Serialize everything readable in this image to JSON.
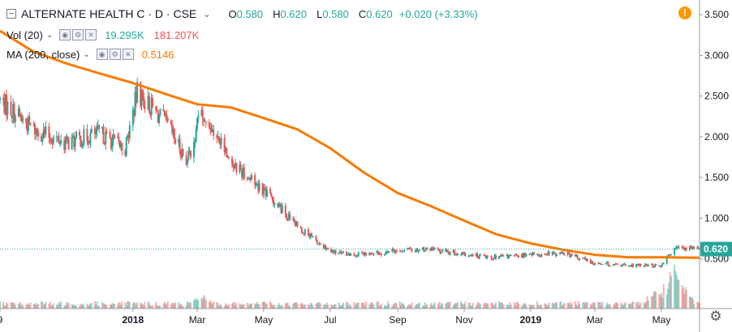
{
  "header": {
    "symbol": "ALTERNATE HEALTH C · D · CSE",
    "ohlc": [
      {
        "k": "O",
        "v": "0.580"
      },
      {
        "k": "H",
        "v": "0.620"
      },
      {
        "k": "L",
        "v": "0.580"
      },
      {
        "k": "C",
        "v": "0.620"
      }
    ],
    "change": "+0.020 (+3.33%)",
    "alert_glyph": "!"
  },
  "volume_study": {
    "label": "Vol (20)",
    "value1": "19.295K",
    "value2": "181.207K"
  },
  "ma_study": {
    "label": "MA (200, close)",
    "value": "0.5146"
  },
  "icons": {
    "collapse": "collapse-icon",
    "alert": "alert-icon",
    "settings": "gear-icon",
    "settings_glyph": "⚙",
    "study_buttons": [
      "eye-icon",
      "gear-icon",
      "close-icon"
    ],
    "study_button_glyphs": [
      "◉",
      "⚙",
      "✕"
    ]
  },
  "colors": {
    "up": "#26a69a",
    "down": "#ef5350",
    "ma": "#f57c00",
    "price_label_bg": "#26a69a",
    "price_line": "#26a69a"
  },
  "chart_data": {
    "type": "candlestick",
    "title": "ALTERNATE HEALTH C · D · CSE",
    "x_ticks": [
      {
        "label": "9",
        "date": "2017-09-01"
      },
      {
        "label": "2018",
        "date": "2018-01-01"
      },
      {
        "label": "Mar",
        "date": "2018-03-01"
      },
      {
        "label": "May",
        "date": "2018-05-01"
      },
      {
        "label": "Jul",
        "date": "2018-07-01"
      },
      {
        "label": "Sep",
        "date": "2018-09-01"
      },
      {
        "label": "Nov",
        "date": "2018-11-01"
      },
      {
        "label": "2019",
        "date": "2019-01-01"
      },
      {
        "label": "Mar",
        "date": "2019-03-01"
      },
      {
        "label": "May",
        "date": "2019-05-01"
      }
    ],
    "x_range": [
      "2017-09-01",
      "2019-06-05"
    ],
    "y_ticks": [
      "0.500",
      "1.000",
      "1.500",
      "2.000",
      "2.500",
      "3.000",
      "3.500"
    ],
    "y_range": [
      0.0,
      3.62
    ],
    "last_price": "0.620",
    "series": [
      {
        "name": "MA (200, close)",
        "kind": "line",
        "points": [
          [
            "2017-09-01",
            3.3
          ],
          [
            "2017-10-01",
            3.05
          ],
          [
            "2017-11-01",
            2.9
          ],
          [
            "2017-12-01",
            2.78
          ],
          [
            "2018-01-01",
            2.66
          ],
          [
            "2018-02-01",
            2.52
          ],
          [
            "2018-03-01",
            2.4
          ],
          [
            "2018-04-01",
            2.36
          ],
          [
            "2018-05-01",
            2.23
          ],
          [
            "2018-06-01",
            2.09
          ],
          [
            "2018-07-01",
            1.86
          ],
          [
            "2018-08-01",
            1.56
          ],
          [
            "2018-09-01",
            1.31
          ],
          [
            "2018-10-01",
            1.15
          ],
          [
            "2018-11-01",
            0.97
          ],
          [
            "2018-12-01",
            0.8
          ],
          [
            "2019-01-01",
            0.69
          ],
          [
            "2019-02-01",
            0.61
          ],
          [
            "2019-03-01",
            0.55
          ],
          [
            "2019-04-01",
            0.52
          ],
          [
            "2019-05-01",
            0.52
          ],
          [
            "2019-06-05",
            0.515
          ]
        ]
      },
      {
        "name": "Price",
        "kind": "candles",
        "anchors": [
          [
            "2017-09-01",
            2.45
          ],
          [
            "2017-10-01",
            2.1
          ],
          [
            "2017-11-01",
            1.92
          ],
          [
            "2017-12-01",
            2.05
          ],
          [
            "2017-12-25",
            1.85
          ],
          [
            "2018-01-05",
            2.55
          ],
          [
            "2018-02-01",
            2.15
          ],
          [
            "2018-02-20",
            1.7
          ],
          [
            "2018-03-05",
            2.3
          ],
          [
            "2018-04-01",
            1.7
          ],
          [
            "2018-05-01",
            1.35
          ],
          [
            "2018-06-01",
            0.9
          ],
          [
            "2018-07-01",
            0.58
          ],
          [
            "2018-08-01",
            0.55
          ],
          [
            "2018-09-01",
            0.6
          ],
          [
            "2018-10-01",
            0.62
          ],
          [
            "2018-11-01",
            0.55
          ],
          [
            "2018-12-01",
            0.52
          ],
          [
            "2019-01-01",
            0.55
          ],
          [
            "2019-02-01",
            0.57
          ],
          [
            "2019-03-01",
            0.45
          ],
          [
            "2019-04-01",
            0.42
          ],
          [
            "2019-05-01",
            0.42
          ],
          [
            "2019-05-15",
            0.65
          ],
          [
            "2019-06-05",
            0.62
          ]
        ]
      }
    ],
    "volume": {
      "name": "Vol (20)",
      "peaks": [
        {
          "date": "2019-05-10",
          "level": 0.9
        },
        {
          "date": "2019-05-20",
          "level": 0.7
        },
        {
          "date": "2019-04-25",
          "level": 0.35
        },
        {
          "date": "2018-03-05",
          "level": 0.3
        }
      ]
    }
  }
}
